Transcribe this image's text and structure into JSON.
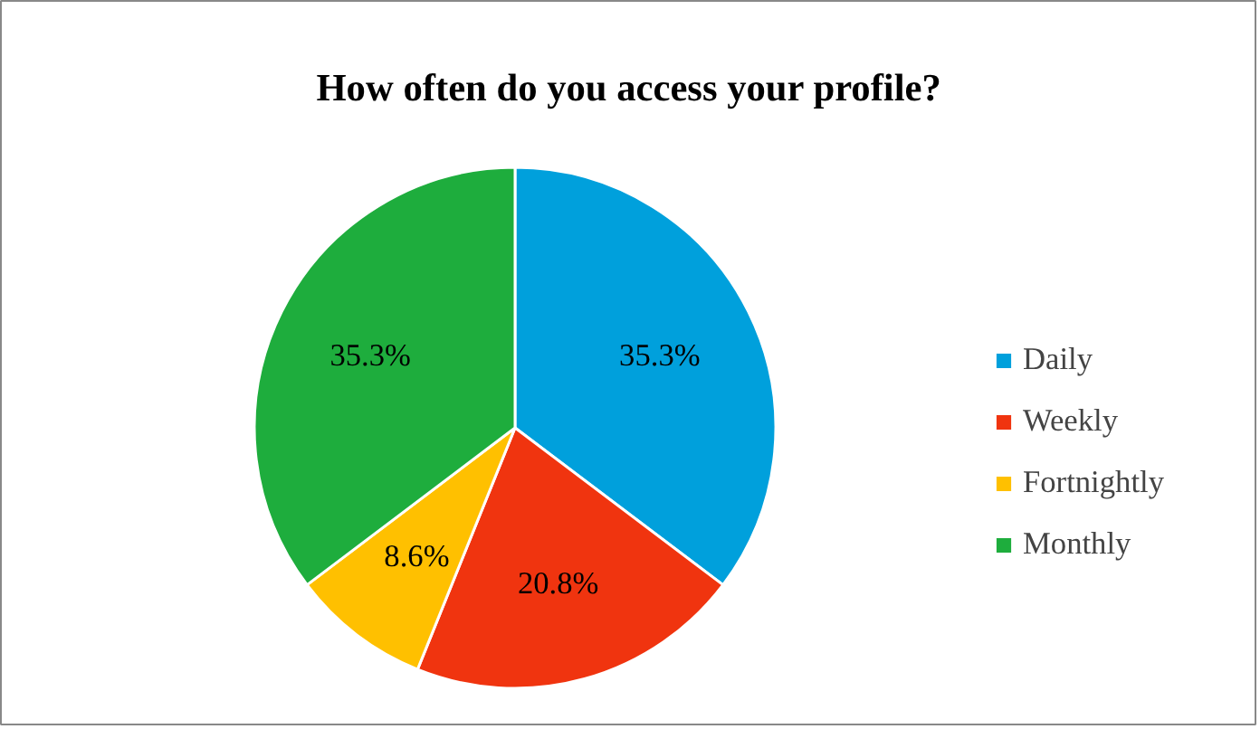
{
  "chart_data": {
    "type": "pie",
    "title": "How often do you access your profile?",
    "categories": [
      "Daily",
      "Weekly",
      "Fortnightly",
      "Monthly"
    ],
    "values": [
      35.3,
      20.8,
      8.6,
      35.3
    ],
    "colors": [
      "#00a0dc",
      "#f0340f",
      "#ffc000",
      "#1ead3d"
    ],
    "value_labels": [
      "35.3%",
      "20.8%",
      "8.6%",
      "35.3%"
    ],
    "legend": "right"
  }
}
